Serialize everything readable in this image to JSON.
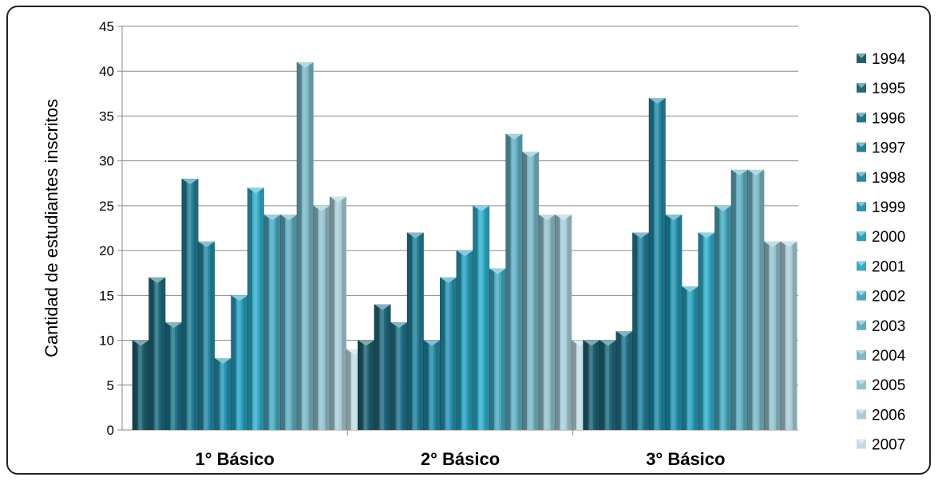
{
  "chart_data": {
    "type": "bar",
    "title": "",
    "xlabel": "",
    "ylabel": "Cantidad de estudiantes inscritos",
    "ylim": [
      0,
      45
    ],
    "yticks": [
      0,
      5,
      10,
      15,
      20,
      25,
      30,
      35,
      40,
      45
    ],
    "grid": true,
    "legend_position": "right",
    "categories": [
      "1° Básico",
      "2° Básico",
      "3° Básico"
    ],
    "series": [
      {
        "name": "1994",
        "color": "#1f5f6f",
        "values": [
          10,
          10,
          10
        ]
      },
      {
        "name": "1995",
        "color": "#216a7c",
        "values": [
          17,
          14,
          10
        ]
      },
      {
        "name": "1996",
        "color": "#23748a",
        "values": [
          12,
          12,
          11
        ]
      },
      {
        "name": "1997",
        "color": "#247f97",
        "values": [
          28,
          22,
          22
        ]
      },
      {
        "name": "1998",
        "color": "#2689a4",
        "values": [
          21,
          10,
          37
        ]
      },
      {
        "name": "1999",
        "color": "#2894b1",
        "values": [
          8,
          17,
          24
        ]
      },
      {
        "name": "2000",
        "color": "#2aa0bd",
        "values": [
          15,
          20,
          16
        ]
      },
      {
        "name": "2001",
        "color": "#35adc9",
        "values": [
          27,
          25,
          22
        ]
      },
      {
        "name": "2002",
        "color": "#4aa9bf",
        "values": [
          24,
          18,
          25
        ]
      },
      {
        "name": "2003",
        "color": "#62afc1",
        "values": [
          24,
          33,
          29
        ]
      },
      {
        "name": "2004",
        "color": "#7bb7c6",
        "values": [
          41,
          31,
          29
        ]
      },
      {
        "name": "2005",
        "color": "#93c2ce",
        "values": [
          25,
          24,
          21
        ]
      },
      {
        "name": "2006",
        "color": "#a9cdd7",
        "values": [
          26,
          24,
          21
        ]
      },
      {
        "name": "2007",
        "color": "#c3dde5",
        "values": [
          9,
          10,
          null
        ]
      }
    ]
  }
}
